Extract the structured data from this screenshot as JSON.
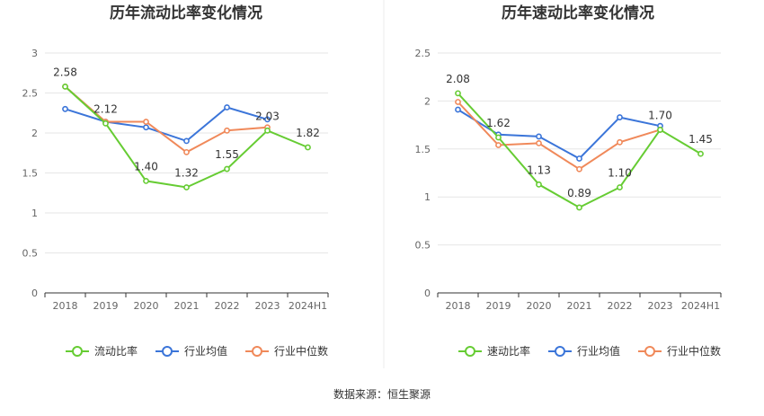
{
  "source": "数据来源：恒生聚源",
  "colors": {
    "main": "#66cc33",
    "avg": "#3b75d9",
    "median": "#f0895a"
  },
  "chart_data": [
    {
      "type": "line",
      "title": "历年流动比率变化情况",
      "categories": [
        "2018",
        "2019",
        "2020",
        "2021",
        "2022",
        "2023",
        "2024H1"
      ],
      "ylim": [
        0,
        3
      ],
      "yticks": [
        "0",
        "0.5",
        "1",
        "1.5",
        "2",
        "2.5",
        "3"
      ],
      "grid": true,
      "legend_position": "bottom",
      "series": [
        {
          "name": "流动比率",
          "values": [
            2.58,
            2.12,
            1.4,
            1.32,
            1.55,
            2.03,
            1.82
          ],
          "labels": [
            "2.58",
            "2.12",
            "1.40",
            "1.32",
            "1.55",
            "2.03",
            "1.82"
          ]
        },
        {
          "name": "行业均值",
          "values": [
            2.3,
            2.14,
            2.07,
            1.9,
            2.32,
            2.17,
            null
          ]
        },
        {
          "name": "行业中位数",
          "values": [
            2.58,
            2.14,
            2.14,
            1.76,
            2.03,
            2.07,
            null
          ]
        }
      ]
    },
    {
      "type": "line",
      "title": "历年速动比率变化情况",
      "categories": [
        "2018",
        "2019",
        "2020",
        "2021",
        "2022",
        "2023",
        "2024H1"
      ],
      "ylim": [
        0,
        2.5
      ],
      "yticks": [
        "0",
        "0.5",
        "1",
        "1.5",
        "2",
        "2.5"
      ],
      "grid": true,
      "legend_position": "bottom",
      "series": [
        {
          "name": "速动比率",
          "values": [
            2.08,
            1.62,
            1.13,
            0.89,
            1.1,
            1.7,
            1.45
          ],
          "labels": [
            "2.08",
            "1.62",
            "1.13",
            "0.89",
            "1.10",
            "1.70",
            "1.45"
          ]
        },
        {
          "name": "行业均值",
          "values": [
            1.91,
            1.65,
            1.63,
            1.4,
            1.83,
            1.74,
            null
          ]
        },
        {
          "name": "行业中位数",
          "values": [
            1.99,
            1.54,
            1.56,
            1.29,
            1.57,
            1.7,
            null
          ]
        }
      ]
    }
  ]
}
